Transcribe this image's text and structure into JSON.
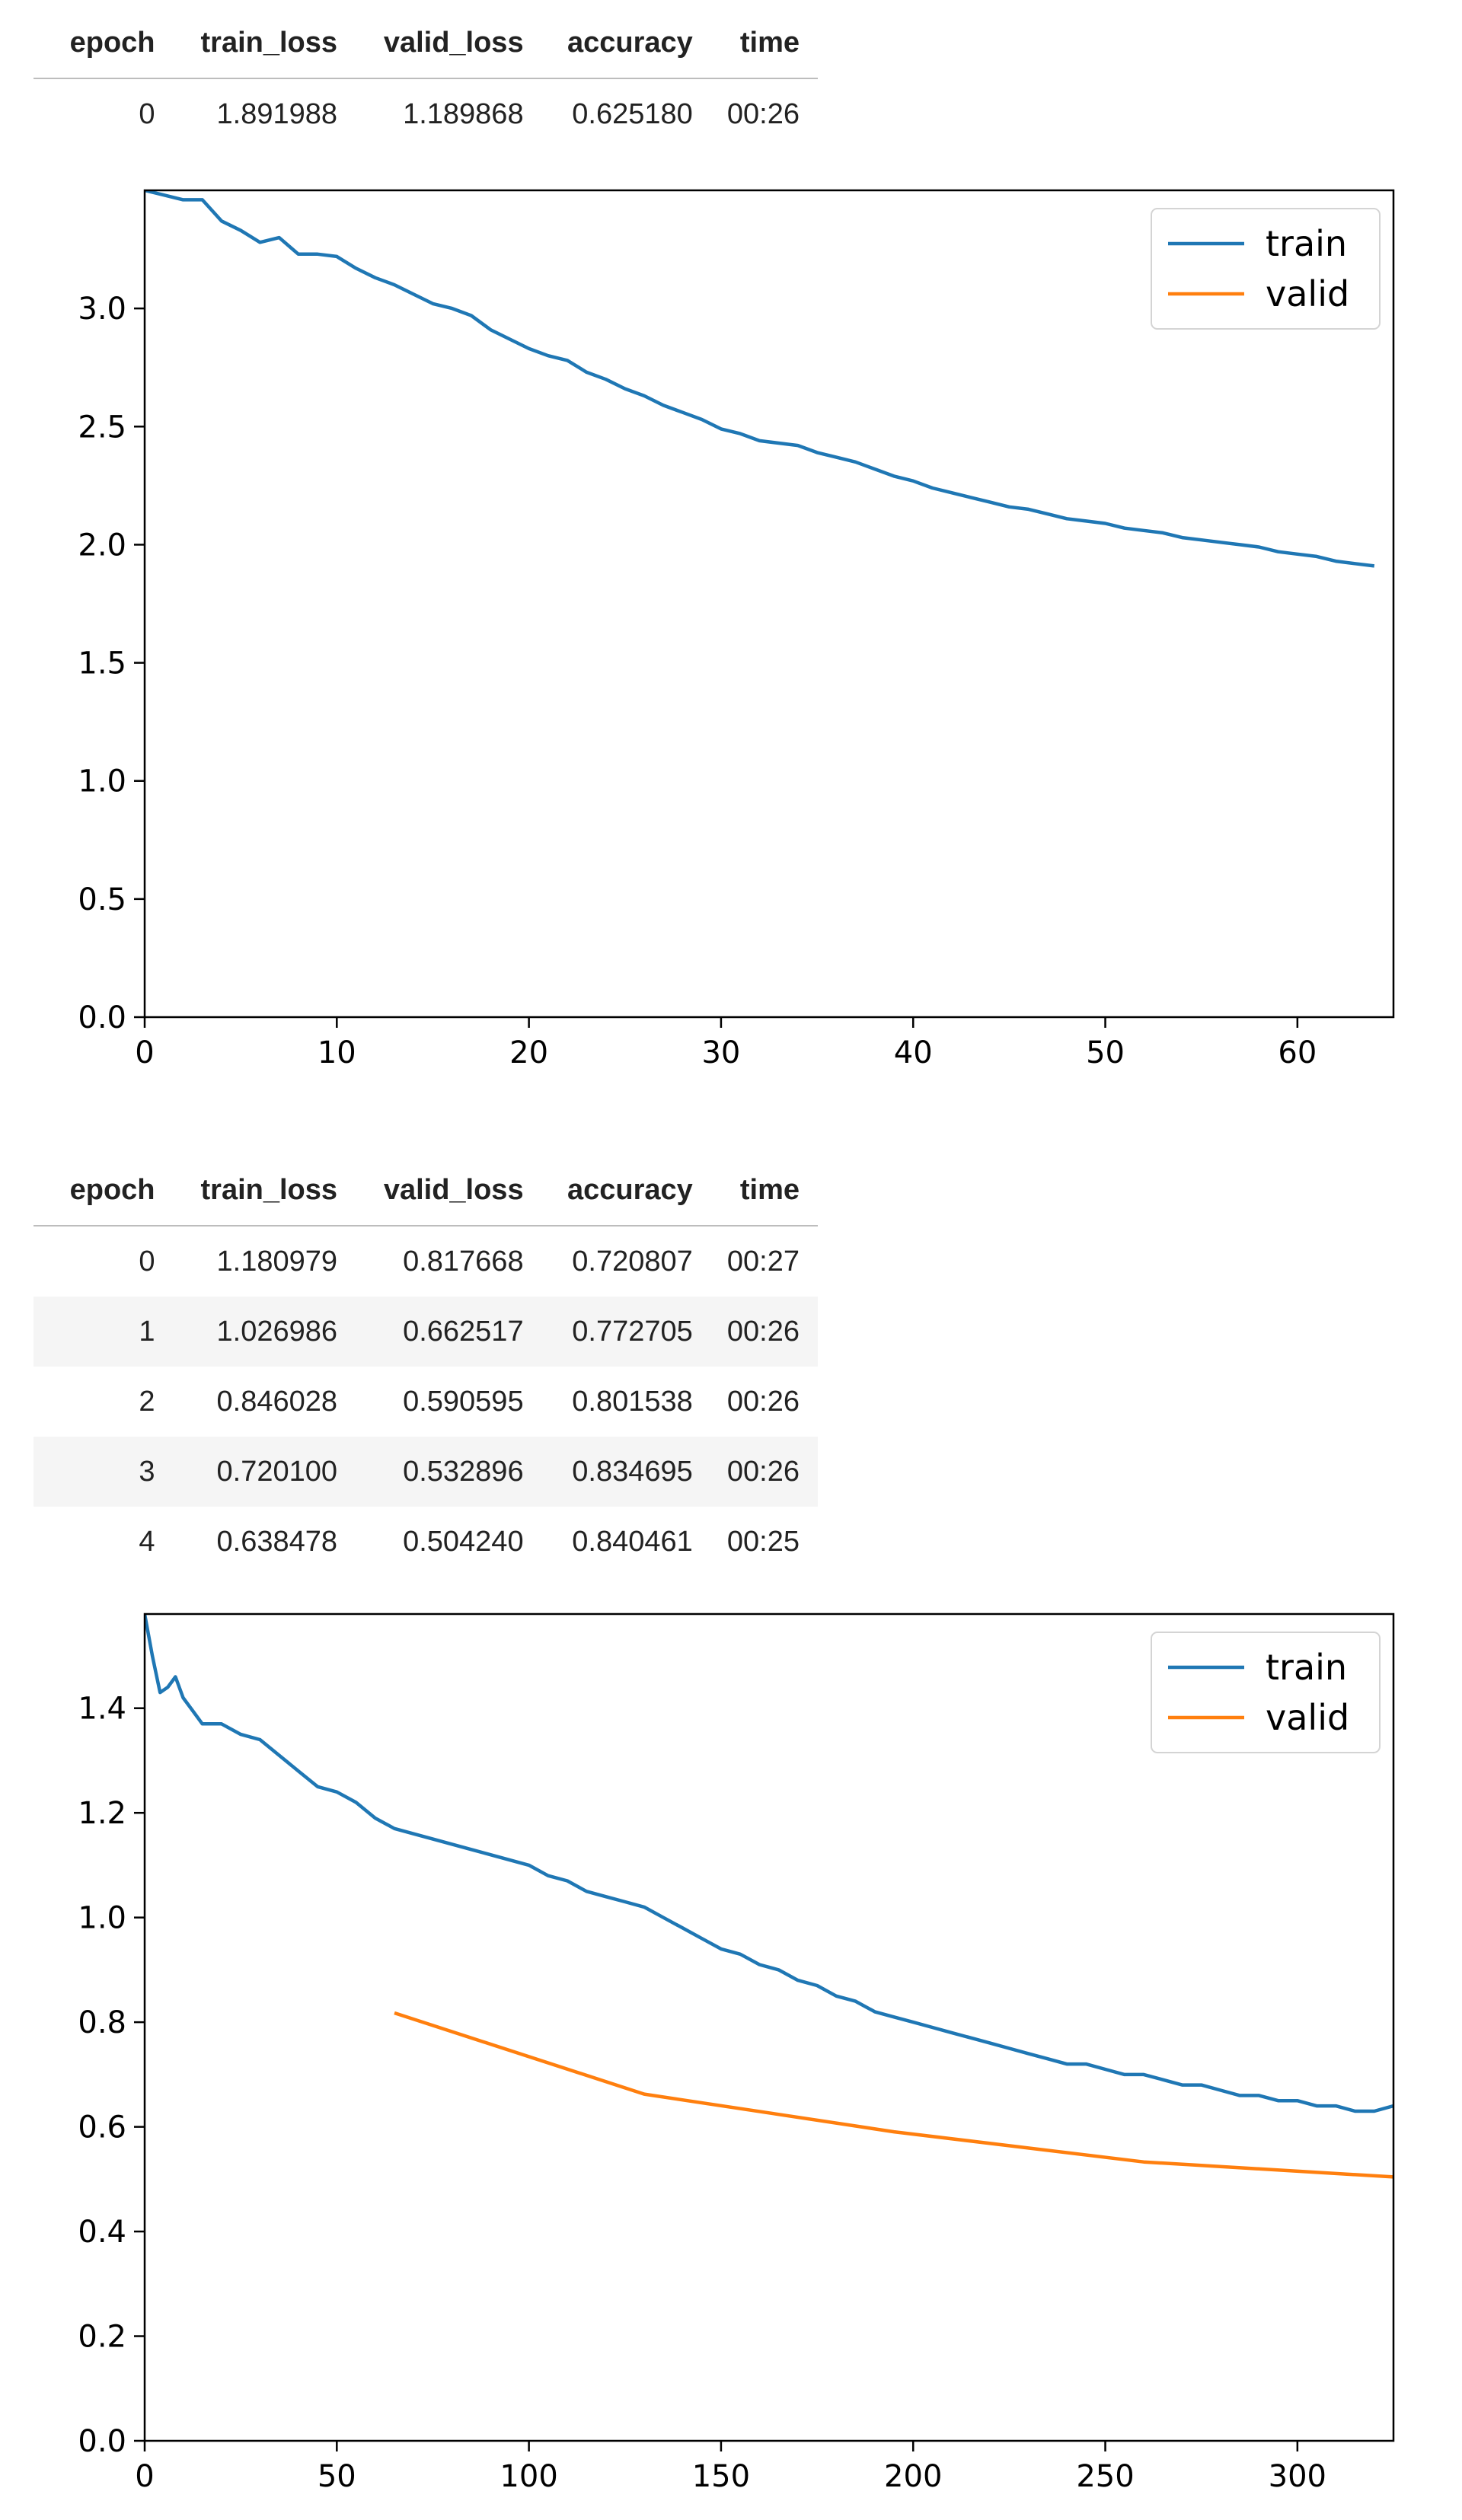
{
  "tables": [
    {
      "columns": [
        "epoch",
        "train_loss",
        "valid_loss",
        "accuracy",
        "time"
      ],
      "rows": [
        [
          "0",
          "1.891988",
          "1.189868",
          "0.625180",
          "00:26"
        ]
      ]
    },
    {
      "columns": [
        "epoch",
        "train_loss",
        "valid_loss",
        "accuracy",
        "time"
      ],
      "rows": [
        [
          "0",
          "1.180979",
          "0.817668",
          "0.720807",
          "00:27"
        ],
        [
          "1",
          "1.026986",
          "0.662517",
          "0.772705",
          "00:26"
        ],
        [
          "2",
          "0.846028",
          "0.590595",
          "0.801538",
          "00:26"
        ],
        [
          "3",
          "0.720100",
          "0.532896",
          "0.834695",
          "00:26"
        ],
        [
          "4",
          "0.638478",
          "0.504240",
          "0.840461",
          "00:25"
        ]
      ]
    }
  ],
  "chart_data": [
    {
      "type": "line",
      "xlim": [
        0,
        65
      ],
      "ylim": [
        0,
        3.5
      ],
      "x_ticks": [
        0,
        10,
        20,
        30,
        40,
        50,
        60
      ],
      "x_tick_labels": [
        "0",
        "10",
        "20",
        "30",
        "40",
        "50",
        "60"
      ],
      "y_ticks": [
        0,
        0.5,
        1.0,
        1.5,
        2.0,
        2.5,
        3.0
      ],
      "y_tick_labels": [
        "0.0",
        "0.5",
        "1.0",
        "1.5",
        "2.0",
        "2.5",
        "3.0"
      ],
      "legend": {
        "position": "top-right",
        "entries": [
          "train",
          "valid"
        ]
      },
      "grid": false,
      "series": [
        {
          "name": "train",
          "color": "#1f77b4",
          "points": [
            [
              0,
              3.5
            ],
            [
              1,
              3.48
            ],
            [
              2,
              3.46
            ],
            [
              3,
              3.46
            ],
            [
              4,
              3.37
            ],
            [
              5,
              3.33
            ],
            [
              6,
              3.28
            ],
            [
              7,
              3.3
            ],
            [
              8,
              3.23
            ],
            [
              9,
              3.23
            ],
            [
              10,
              3.22
            ],
            [
              11,
              3.17
            ],
            [
              12,
              3.13
            ],
            [
              13,
              3.1
            ],
            [
              14,
              3.06
            ],
            [
              15,
              3.02
            ],
            [
              16,
              3.0
            ],
            [
              17,
              2.97
            ],
            [
              18,
              2.91
            ],
            [
              19,
              2.87
            ],
            [
              20,
              2.83
            ],
            [
              21,
              2.8
            ],
            [
              22,
              2.78
            ],
            [
              23,
              2.73
            ],
            [
              24,
              2.7
            ],
            [
              25,
              2.66
            ],
            [
              26,
              2.63
            ],
            [
              27,
              2.59
            ],
            [
              28,
              2.56
            ],
            [
              29,
              2.53
            ],
            [
              30,
              2.49
            ],
            [
              31,
              2.47
            ],
            [
              32,
              2.44
            ],
            [
              33,
              2.43
            ],
            [
              34,
              2.42
            ],
            [
              35,
              2.39
            ],
            [
              36,
              2.37
            ],
            [
              37,
              2.35
            ],
            [
              38,
              2.32
            ],
            [
              39,
              2.29
            ],
            [
              40,
              2.27
            ],
            [
              41,
              2.24
            ],
            [
              42,
              2.22
            ],
            [
              43,
              2.2
            ],
            [
              44,
              2.18
            ],
            [
              45,
              2.16
            ],
            [
              46,
              2.15
            ],
            [
              47,
              2.13
            ],
            [
              48,
              2.11
            ],
            [
              49,
              2.1
            ],
            [
              50,
              2.09
            ],
            [
              51,
              2.07
            ],
            [
              52,
              2.06
            ],
            [
              53,
              2.05
            ],
            [
              54,
              2.03
            ],
            [
              55,
              2.02
            ],
            [
              56,
              2.01
            ],
            [
              57,
              2.0
            ],
            [
              58,
              1.99
            ],
            [
              59,
              1.97
            ],
            [
              60,
              1.96
            ],
            [
              61,
              1.95
            ],
            [
              62,
              1.93
            ],
            [
              63,
              1.92
            ],
            [
              64,
              1.91
            ]
          ]
        },
        {
          "name": "valid",
          "color": "#ff7f0e",
          "points": []
        }
      ]
    },
    {
      "type": "line",
      "xlim": [
        0,
        325
      ],
      "ylim": [
        0,
        1.58
      ],
      "x_ticks": [
        0,
        50,
        100,
        150,
        200,
        250,
        300
      ],
      "x_tick_labels": [
        "0",
        "50",
        "100",
        "150",
        "200",
        "250",
        "300"
      ],
      "y_ticks": [
        0,
        0.2,
        0.4,
        0.6,
        0.8,
        1.0,
        1.2,
        1.4
      ],
      "y_tick_labels": [
        "0.0",
        "0.2",
        "0.4",
        "0.6",
        "0.8",
        "1.0",
        "1.2",
        "1.4"
      ],
      "legend": {
        "position": "top-right",
        "entries": [
          "train",
          "valid"
        ]
      },
      "grid": false,
      "series": [
        {
          "name": "train",
          "color": "#1f77b4",
          "points": [
            [
              0,
              1.58
            ],
            [
              2,
              1.5
            ],
            [
              4,
              1.43
            ],
            [
              6,
              1.44
            ],
            [
              8,
              1.46
            ],
            [
              10,
              1.42
            ],
            [
              12,
              1.4
            ],
            [
              15,
              1.37
            ],
            [
              20,
              1.37
            ],
            [
              25,
              1.35
            ],
            [
              30,
              1.34
            ],
            [
              35,
              1.31
            ],
            [
              40,
              1.28
            ],
            [
              45,
              1.25
            ],
            [
              50,
              1.24
            ],
            [
              55,
              1.22
            ],
            [
              60,
              1.19
            ],
            [
              65,
              1.17
            ],
            [
              70,
              1.16
            ],
            [
              75,
              1.15
            ],
            [
              80,
              1.14
            ],
            [
              85,
              1.13
            ],
            [
              90,
              1.12
            ],
            [
              95,
              1.11
            ],
            [
              100,
              1.1
            ],
            [
              105,
              1.08
            ],
            [
              110,
              1.07
            ],
            [
              115,
              1.05
            ],
            [
              120,
              1.04
            ],
            [
              125,
              1.03
            ],
            [
              130,
              1.02
            ],
            [
              135,
              1.0
            ],
            [
              140,
              0.98
            ],
            [
              145,
              0.96
            ],
            [
              150,
              0.94
            ],
            [
              155,
              0.93
            ],
            [
              160,
              0.91
            ],
            [
              165,
              0.9
            ],
            [
              170,
              0.88
            ],
            [
              175,
              0.87
            ],
            [
              180,
              0.85
            ],
            [
              185,
              0.84
            ],
            [
              190,
              0.82
            ],
            [
              195,
              0.81
            ],
            [
              200,
              0.8
            ],
            [
              205,
              0.79
            ],
            [
              210,
              0.78
            ],
            [
              215,
              0.77
            ],
            [
              220,
              0.76
            ],
            [
              225,
              0.75
            ],
            [
              230,
              0.74
            ],
            [
              235,
              0.73
            ],
            [
              240,
              0.72
            ],
            [
              245,
              0.72
            ],
            [
              250,
              0.71
            ],
            [
              255,
              0.7
            ],
            [
              260,
              0.7
            ],
            [
              265,
              0.69
            ],
            [
              270,
              0.68
            ],
            [
              275,
              0.68
            ],
            [
              280,
              0.67
            ],
            [
              285,
              0.66
            ],
            [
              290,
              0.66
            ],
            [
              295,
              0.65
            ],
            [
              300,
              0.65
            ],
            [
              305,
              0.64
            ],
            [
              310,
              0.64
            ],
            [
              315,
              0.63
            ],
            [
              320,
              0.63
            ],
            [
              325,
              0.64
            ]
          ]
        },
        {
          "name": "valid",
          "color": "#ff7f0e",
          "points": [
            [
              65,
              0.817668
            ],
            [
              130,
              0.662517
            ],
            [
              195,
              0.590595
            ],
            [
              260,
              0.532896
            ],
            [
              325,
              0.50424
            ]
          ]
        }
      ]
    }
  ]
}
